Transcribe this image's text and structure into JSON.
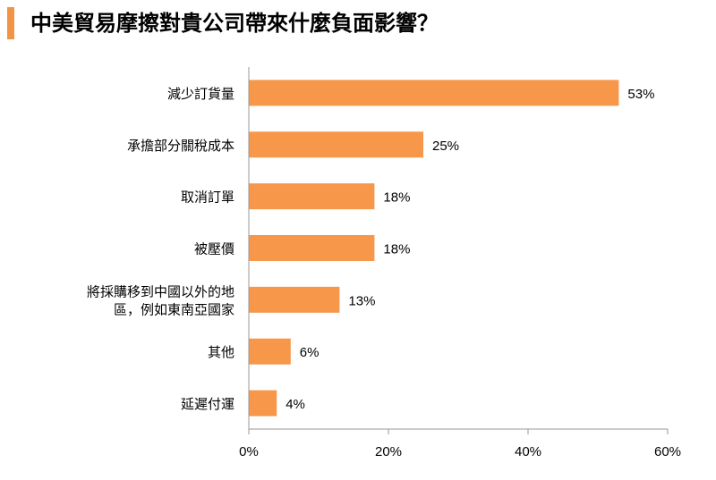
{
  "title": "中美貿易摩擦對貴公司帶來什麼負面影響？",
  "colors": {
    "bar": "#f7974a",
    "accent": "#f29443",
    "axis": "#9a9a9a"
  },
  "chart_data": {
    "type": "bar",
    "orientation": "horizontal",
    "categories": [
      [
        "減少訂貨量"
      ],
      [
        "承擔部分關稅成本"
      ],
      [
        "取消訂單"
      ],
      [
        "被壓價"
      ],
      [
        "將採購移到中國以外的地",
        "區，例如東南亞國家"
      ],
      [
        "其他"
      ],
      [
        "延遲付運"
      ]
    ],
    "values": [
      53,
      25,
      18,
      18,
      13,
      6,
      4
    ],
    "value_labels": [
      "53%",
      "25%",
      "18%",
      "18%",
      "13%",
      "6%",
      "4%"
    ],
    "xlim": [
      0,
      60
    ],
    "xticks": [
      0,
      20,
      40,
      60
    ],
    "xtick_labels": [
      "0%",
      "20%",
      "40%",
      "60%"
    ],
    "grid": false,
    "legend": "none"
  }
}
